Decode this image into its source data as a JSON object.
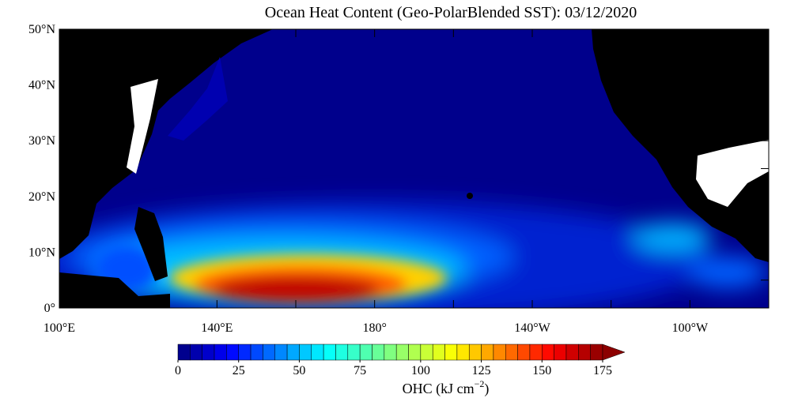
{
  "map": {
    "title": "Ocean Heat Content (Geo-PolarBlended SST): 03/12/2020",
    "xlim": [
      100,
      280
    ],
    "ylim": [
      0,
      50
    ],
    "lon_ticks": [
      {
        "value": 100,
        "label": "100°E"
      },
      {
        "value": 140,
        "label": "140°E"
      },
      {
        "value": 180,
        "label": "180°"
      },
      {
        "value": 220,
        "label": "140°W"
      },
      {
        "value": 260,
        "label": "100°W"
      }
    ],
    "lat_ticks": [
      {
        "value": 0,
        "label": "0°"
      },
      {
        "value": 10,
        "label": "10°N"
      },
      {
        "value": 20,
        "label": "20°N"
      },
      {
        "value": 30,
        "label": "30°N"
      },
      {
        "value": 40,
        "label": "40°N"
      },
      {
        "value": 50,
        "label": "50°N"
      }
    ],
    "colorbar": {
      "ticks": [
        0,
        25,
        50,
        75,
        100,
        125,
        150,
        175
      ],
      "label": "OHC (kJ cm",
      "label_sup": "−2",
      "label_end": ")"
    }
  }
}
